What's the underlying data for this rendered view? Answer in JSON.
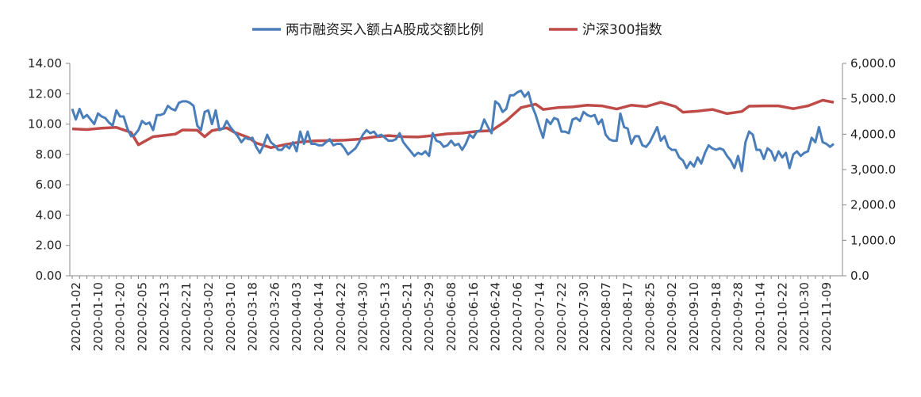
{
  "chart_data": {
    "type": "line",
    "title": "",
    "legend": {
      "placement": "top-center"
    },
    "grid": false,
    "x_ticks": [
      "2020-01-02",
      "2020-01-10",
      "2020-01-20",
      "2020-02-05",
      "2020-02-13",
      "2020-02-21",
      "2020-03-02",
      "2020-03-10",
      "2020-03-18",
      "2020-03-26",
      "2020-04-03",
      "2020-04-14",
      "2020-04-22",
      "2020-04-30",
      "2020-05-13",
      "2020-05-21",
      "2020-05-29",
      "2020-06-08",
      "2020-06-16",
      "2020-06-24",
      "2020-07-06",
      "2020-07-14",
      "2020-07-22",
      "2020-07-30",
      "2020-08-07",
      "2020-08-17",
      "2020-08-25",
      "2020-09-02",
      "2020-09-10",
      "2020-09-18",
      "2020-09-28",
      "2020-10-14",
      "2020-10-22",
      "2020-10-30",
      "2020-11-09"
    ],
    "y_left": {
      "range": [
        0,
        14
      ],
      "ticks": [
        "0.00",
        "2.00",
        "4.00",
        "6.00",
        "8.00",
        "10.00",
        "12.00",
        "14.00"
      ]
    },
    "y_right": {
      "range": [
        0,
        6000
      ],
      "ticks": [
        "0.0",
        "1,000.0",
        "2,000.0",
        "3,000.0",
        "4,000.0",
        "5,000.0",
        "6,000.0"
      ]
    },
    "series": [
      {
        "name": "两市融资买入额占A股成交额比例",
        "axis": "left",
        "color": "#4a7ebb",
        "values": [
          [
            0,
            11.0
          ],
          [
            1,
            10.3
          ],
          [
            2,
            11.0
          ],
          [
            3,
            10.4
          ],
          [
            4,
            10.6
          ],
          [
            5,
            10.3
          ],
          [
            6,
            10.0
          ],
          [
            7,
            10.7
          ],
          [
            8,
            10.5
          ],
          [
            9,
            10.4
          ],
          [
            10,
            10.1
          ],
          [
            11,
            9.9
          ],
          [
            12,
            10.9
          ],
          [
            13,
            10.5
          ],
          [
            14,
            10.5
          ],
          [
            15,
            9.7
          ],
          [
            16,
            9.2
          ],
          [
            17,
            9.3
          ],
          [
            18,
            9.6
          ],
          [
            19,
            10.2
          ],
          [
            20,
            10.0
          ],
          [
            21,
            10.1
          ],
          [
            22,
            9.6
          ],
          [
            23,
            10.6
          ],
          [
            24,
            10.6
          ],
          [
            25,
            10.7
          ],
          [
            26,
            11.2
          ],
          [
            27,
            11.0
          ],
          [
            28,
            10.9
          ],
          [
            29,
            11.4
          ],
          [
            30,
            11.5
          ],
          [
            31,
            11.5
          ],
          [
            32,
            11.4
          ],
          [
            33,
            11.2
          ],
          [
            34,
            9.9
          ],
          [
            35,
            9.6
          ],
          [
            36,
            10.8
          ],
          [
            37,
            10.9
          ],
          [
            38,
            10.0
          ],
          [
            39,
            10.9
          ],
          [
            40,
            9.6
          ],
          [
            41,
            9.7
          ],
          [
            42,
            10.2
          ],
          [
            43,
            9.8
          ],
          [
            44,
            9.5
          ],
          [
            45,
            9.2
          ],
          [
            46,
            8.8
          ],
          [
            47,
            9.1
          ],
          [
            48,
            9.0
          ],
          [
            49,
            9.1
          ],
          [
            50,
            8.5
          ],
          [
            51,
            8.1
          ],
          [
            52,
            8.6
          ],
          [
            53,
            9.3
          ],
          [
            54,
            8.8
          ],
          [
            55,
            8.6
          ],
          [
            56,
            8.3
          ],
          [
            57,
            8.3
          ],
          [
            58,
            8.6
          ],
          [
            59,
            8.4
          ],
          [
            60,
            8.8
          ],
          [
            61,
            8.2
          ],
          [
            62,
            9.5
          ],
          [
            63,
            8.7
          ],
          [
            64,
            9.5
          ],
          [
            65,
            8.7
          ],
          [
            66,
            8.7
          ],
          [
            67,
            8.6
          ],
          [
            68,
            8.6
          ],
          [
            69,
            8.8
          ],
          [
            70,
            9.0
          ],
          [
            71,
            8.6
          ],
          [
            72,
            8.7
          ],
          [
            73,
            8.7
          ],
          [
            74,
            8.4
          ],
          [
            75,
            8.0
          ],
          [
            76,
            8.2
          ],
          [
            77,
            8.4
          ],
          [
            78,
            8.8
          ],
          [
            79,
            9.3
          ],
          [
            80,
            9.6
          ],
          [
            81,
            9.4
          ],
          [
            82,
            9.5
          ],
          [
            83,
            9.2
          ],
          [
            84,
            9.3
          ],
          [
            85,
            9.1
          ],
          [
            86,
            8.9
          ],
          [
            87,
            8.9
          ],
          [
            88,
            9.0
          ],
          [
            89,
            9.4
          ],
          [
            90,
            8.8
          ],
          [
            91,
            8.5
          ],
          [
            92,
            8.2
          ],
          [
            93,
            7.9
          ],
          [
            94,
            8.1
          ],
          [
            95,
            8.0
          ],
          [
            96,
            8.2
          ],
          [
            97,
            7.9
          ],
          [
            98,
            9.4
          ],
          [
            99,
            8.9
          ],
          [
            100,
            8.8
          ],
          [
            101,
            8.5
          ],
          [
            102,
            8.6
          ],
          [
            103,
            8.9
          ],
          [
            104,
            8.6
          ],
          [
            105,
            8.7
          ],
          [
            106,
            8.3
          ],
          [
            107,
            8.7
          ],
          [
            108,
            9.3
          ],
          [
            109,
            9.1
          ],
          [
            110,
            9.5
          ],
          [
            111,
            9.6
          ],
          [
            112,
            10.3
          ],
          [
            113,
            9.8
          ],
          [
            114,
            9.4
          ],
          [
            115,
            11.5
          ],
          [
            116,
            11.3
          ],
          [
            117,
            10.8
          ],
          [
            118,
            11.0
          ],
          [
            119,
            11.9
          ],
          [
            120,
            11.9
          ],
          [
            121,
            12.1
          ],
          [
            122,
            12.2
          ],
          [
            123,
            11.8
          ],
          [
            124,
            12.1
          ],
          [
            125,
            11.2
          ],
          [
            126,
            10.6
          ],
          [
            127,
            9.8
          ],
          [
            128,
            9.1
          ],
          [
            129,
            10.3
          ],
          [
            130,
            10.0
          ],
          [
            131,
            10.4
          ],
          [
            132,
            10.3
          ],
          [
            133,
            9.5
          ],
          [
            134,
            9.5
          ],
          [
            135,
            9.4
          ],
          [
            136,
            10.3
          ],
          [
            137,
            10.4
          ],
          [
            138,
            10.2
          ],
          [
            139,
            10.8
          ],
          [
            140,
            10.6
          ],
          [
            141,
            10.5
          ],
          [
            142,
            10.6
          ],
          [
            143,
            10.0
          ],
          [
            144,
            10.3
          ],
          [
            145,
            9.3
          ],
          [
            146,
            9.0
          ],
          [
            147,
            8.9
          ],
          [
            148,
            8.9
          ],
          [
            149,
            10.7
          ],
          [
            150,
            9.8
          ],
          [
            151,
            9.7
          ],
          [
            152,
            8.7
          ],
          [
            153,
            9.2
          ],
          [
            154,
            9.2
          ],
          [
            155,
            8.6
          ],
          [
            156,
            8.5
          ],
          [
            157,
            8.8
          ],
          [
            158,
            9.3
          ],
          [
            159,
            9.8
          ],
          [
            160,
            8.9
          ],
          [
            161,
            9.2
          ],
          [
            162,
            8.5
          ],
          [
            163,
            8.3
          ],
          [
            164,
            8.3
          ],
          [
            165,
            7.8
          ],
          [
            166,
            7.6
          ],
          [
            167,
            7.1
          ],
          [
            168,
            7.5
          ],
          [
            169,
            7.2
          ],
          [
            170,
            7.8
          ],
          [
            171,
            7.4
          ],
          [
            172,
            8.1
          ],
          [
            173,
            8.6
          ],
          [
            174,
            8.4
          ],
          [
            175,
            8.3
          ],
          [
            176,
            8.4
          ],
          [
            177,
            8.3
          ],
          [
            178,
            7.9
          ],
          [
            179,
            7.6
          ],
          [
            180,
            7.1
          ],
          [
            181,
            7.9
          ],
          [
            182,
            6.9
          ],
          [
            183,
            8.8
          ],
          [
            184,
            9.5
          ],
          [
            185,
            9.3
          ],
          [
            186,
            8.3
          ],
          [
            187,
            8.3
          ],
          [
            188,
            7.7
          ],
          [
            189,
            8.4
          ],
          [
            190,
            8.2
          ],
          [
            191,
            7.6
          ],
          [
            192,
            8.2
          ],
          [
            193,
            7.8
          ],
          [
            194,
            8.1
          ],
          [
            195,
            7.1
          ],
          [
            196,
            8.0
          ],
          [
            197,
            8.2
          ],
          [
            198,
            7.9
          ],
          [
            199,
            8.1
          ],
          [
            200,
            8.2
          ],
          [
            201,
            9.1
          ],
          [
            202,
            8.8
          ],
          [
            203,
            9.8
          ],
          [
            204,
            8.8
          ],
          [
            205,
            8.7
          ],
          [
            206,
            8.5
          ],
          [
            207,
            8.7
          ]
        ]
      },
      {
        "name": "沪深300指数",
        "axis": "right",
        "color": "#be4b48",
        "values": [
          [
            0,
            4150
          ],
          [
            4,
            4130
          ],
          [
            8,
            4170
          ],
          [
            12,
            4190
          ],
          [
            16,
            4050
          ],
          [
            18,
            3700
          ],
          [
            22,
            3930
          ],
          [
            28,
            4000
          ],
          [
            30,
            4120
          ],
          [
            34,
            4110
          ],
          [
            36,
            3930
          ],
          [
            38,
            4100
          ],
          [
            42,
            4180
          ],
          [
            44,
            4060
          ],
          [
            48,
            3900
          ],
          [
            50,
            3750
          ],
          [
            54,
            3620
          ],
          [
            58,
            3710
          ],
          [
            62,
            3780
          ],
          [
            66,
            3810
          ],
          [
            70,
            3820
          ],
          [
            74,
            3830
          ],
          [
            78,
            3860
          ],
          [
            82,
            3920
          ],
          [
            86,
            3960
          ],
          [
            90,
            3930
          ],
          [
            94,
            3920
          ],
          [
            98,
            3960
          ],
          [
            102,
            4010
          ],
          [
            106,
            4030
          ],
          [
            110,
            4080
          ],
          [
            114,
            4100
          ],
          [
            118,
            4380
          ],
          [
            122,
            4750
          ],
          [
            126,
            4850
          ],
          [
            128,
            4700
          ],
          [
            132,
            4750
          ],
          [
            136,
            4770
          ],
          [
            140,
            4820
          ],
          [
            144,
            4800
          ],
          [
            148,
            4710
          ],
          [
            152,
            4820
          ],
          [
            156,
            4780
          ],
          [
            160,
            4900
          ],
          [
            164,
            4780
          ],
          [
            166,
            4620
          ],
          [
            170,
            4650
          ],
          [
            174,
            4700
          ],
          [
            178,
            4580
          ],
          [
            182,
            4640
          ],
          [
            184,
            4790
          ],
          [
            188,
            4800
          ],
          [
            192,
            4800
          ],
          [
            196,
            4720
          ],
          [
            200,
            4800
          ],
          [
            204,
            4960
          ],
          [
            207,
            4900
          ]
        ]
      }
    ]
  }
}
